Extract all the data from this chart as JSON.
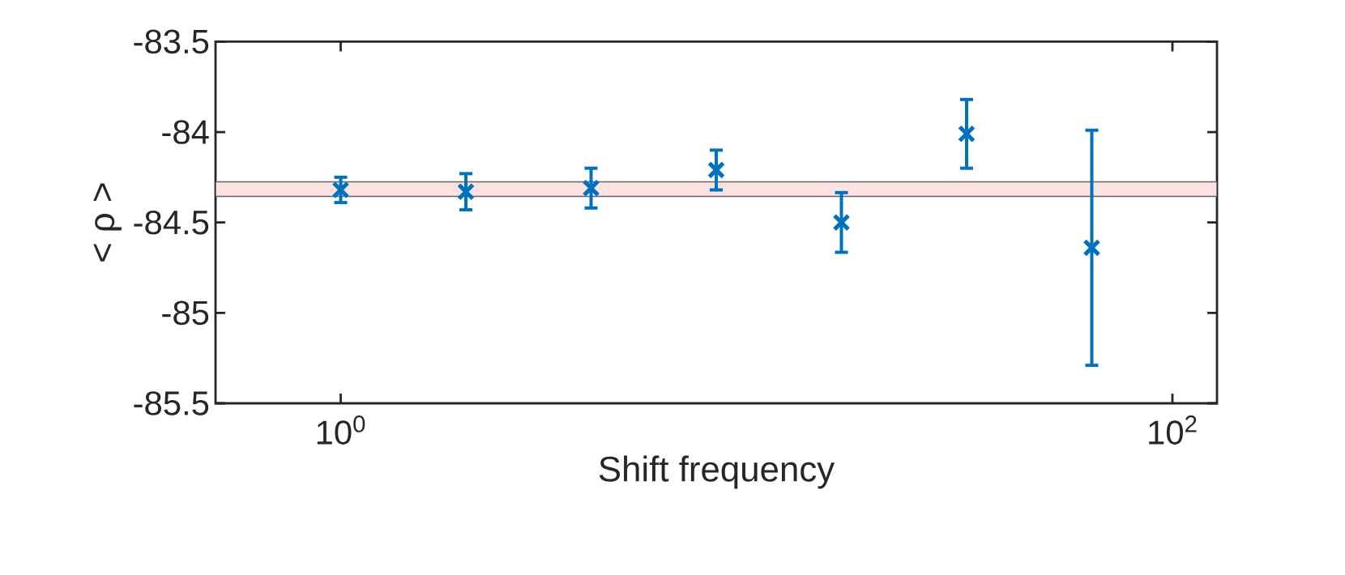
{
  "chart_data": {
    "type": "scatter",
    "xlabel": "Shift frequency",
    "ylabel": "< ρ >",
    "x": [
      1,
      2,
      4,
      8,
      16,
      32,
      64
    ],
    "values": [
      -84.32,
      -84.33,
      -84.31,
      -84.21,
      -84.5,
      -84.01,
      -84.64
    ],
    "errors": [
      0.07,
      0.1,
      0.11,
      0.11,
      0.165,
      0.19,
      0.65
    ],
    "color": "#0072bd",
    "marker": "cross",
    "log": "x",
    "xlim": [
      0.5,
      128
    ],
    "ylim": [
      -85.5,
      -83.5
    ],
    "xticks": [
      {
        "value": 1,
        "label": "10$^{0}$"
      },
      {
        "value": 100,
        "label": "10$^{2}$"
      }
    ],
    "yticks": [
      -85.5,
      -85,
      -84.5,
      -84,
      -83.5
    ],
    "bands": [
      {
        "axis": "y",
        "from": -84.356,
        "to": -84.275,
        "color": "#fde2e2"
      }
    ]
  }
}
